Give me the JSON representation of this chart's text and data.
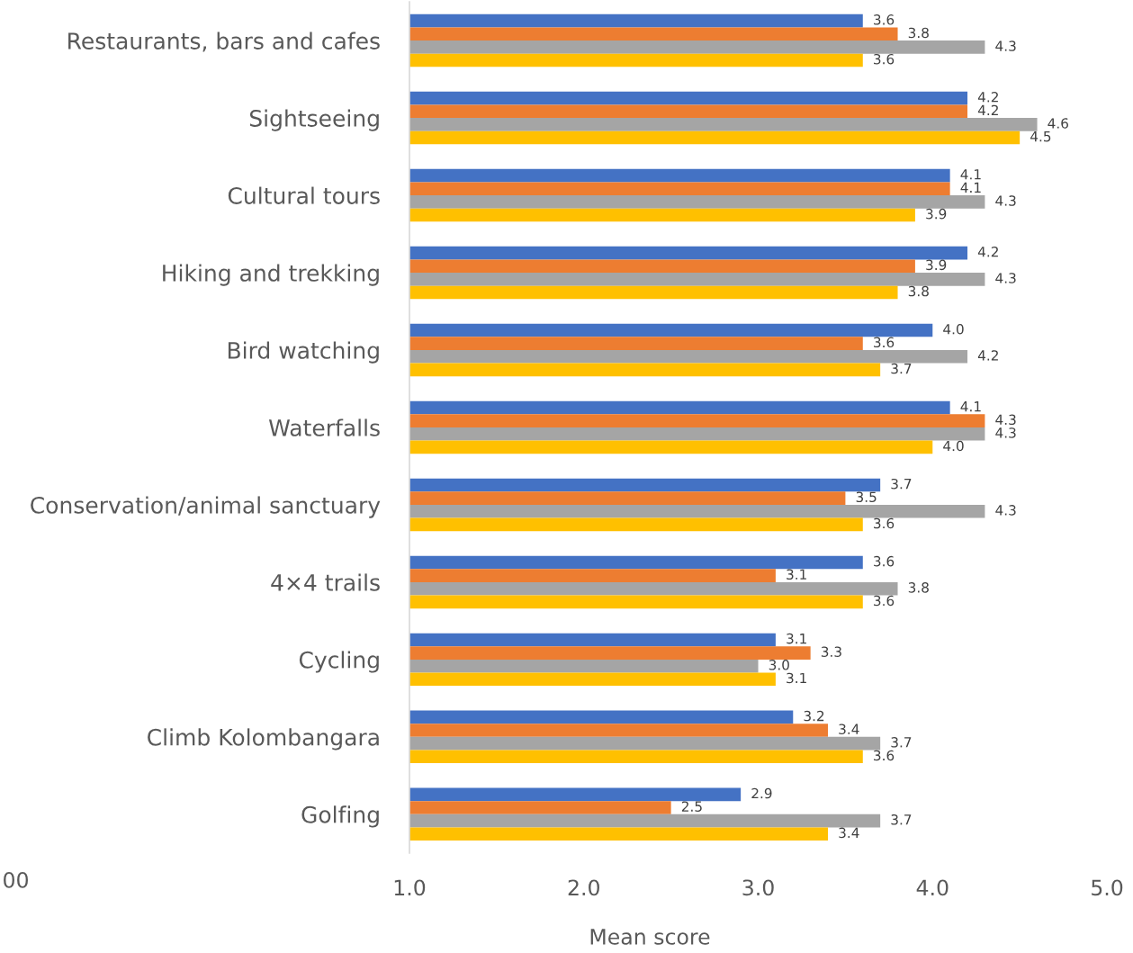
{
  "chart_data": {
    "type": "bar",
    "orientation": "horizontal",
    "categories": [
      "Restaurants, bars and cafes",
      "Sightseeing",
      "Cultural tours",
      "Hiking and trekking",
      "Bird watching",
      "Waterfalls",
      "Conservation/animal sanctuary",
      "4×4 trails",
      "Cycling",
      "Climb Kolombangara",
      "Golfing"
    ],
    "series": [
      {
        "color": "#4472c4",
        "values": [
          3.6,
          4.2,
          4.1,
          4.2,
          4.0,
          4.1,
          3.7,
          3.6,
          3.1,
          3.2,
          2.9
        ],
        "value_labels": [
          "3.6",
          "4.2",
          "4.1",
          "4.2",
          "4.0",
          "4.1",
          "3.7",
          "3.6",
          "3.1",
          "3.2",
          "2.9"
        ]
      },
      {
        "color": "#ed7d31",
        "values": [
          3.8,
          4.2,
          4.1,
          3.9,
          3.6,
          4.3,
          3.5,
          3.1,
          3.3,
          3.4,
          2.5
        ],
        "value_labels": [
          "3.8",
          "4.2",
          "4.1",
          "3.9",
          "3.6",
          "4.3",
          "3.5",
          "3.1",
          "3.3",
          "3.4",
          "2.5"
        ]
      },
      {
        "color": "#a5a5a5",
        "values": [
          4.3,
          4.6,
          4.3,
          4.3,
          4.2,
          4.3,
          4.3,
          3.8,
          3.0,
          3.7,
          3.7
        ],
        "value_labels": [
          "4.3",
          "4.6",
          "4.3",
          "4.3",
          "4.2",
          "4.3",
          "4.3",
          "3.8",
          "3.0",
          "3.7",
          "3.7"
        ]
      },
      {
        "color": "#ffc000",
        "values": [
          3.6,
          4.5,
          3.9,
          3.8,
          3.7,
          4.0,
          3.6,
          3.6,
          3.1,
          3.6,
          3.4
        ],
        "value_labels": [
          "3.6",
          "4.5",
          "3.9",
          "3.8",
          "3.7",
          "4.0",
          "3.6",
          "3.6",
          "3.1",
          "3.6",
          "3.4"
        ]
      }
    ],
    "xlim": [
      1,
      5
    ],
    "xticks": [
      {
        "value": 1,
        "label": "1.0"
      },
      {
        "value": 2,
        "label": "2.0"
      },
      {
        "value": 3,
        "label": "3.0"
      },
      {
        "value": 4,
        "label": "4.0"
      },
      {
        "value": 5,
        "label": "5.0"
      }
    ],
    "xlabel": "Mean score",
    "annotations": [
      "00"
    ]
  }
}
